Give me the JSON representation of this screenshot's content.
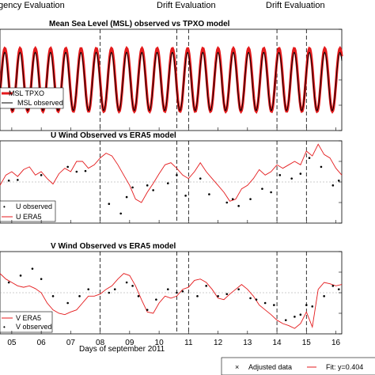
{
  "top_labels": [
    "gency Evaluation",
    "Drift Evaluation",
    "Drift Evaluation"
  ],
  "x_axis_label": "Days of september 2011",
  "x_tick_labels": [
    "05",
    "06",
    "07",
    "08",
    "09",
    "10",
    "11",
    "12",
    "13",
    "14",
    "15",
    "16"
  ],
  "bottom_legend": {
    "adjusted": "Adjusted data",
    "fit": "Fit: y=0.404"
  },
  "colors": {
    "observed": "#000000",
    "model": "#e41a1c",
    "event_line": "#000000",
    "zero_line": "#999999"
  },
  "chart_data": [
    {
      "type": "line",
      "title": "Mean Sea Level (MSL) observed vs TPXO model",
      "x_range": [
        4.6,
        16.2
      ],
      "event_lines": [
        8.0,
        10.6,
        11.0,
        14.0,
        15.0
      ],
      "legend": [
        "MSL TPXO",
        "MSL observed"
      ],
      "series": [
        {
          "name": "MSL TPXO",
          "style": "thick-line",
          "mean": 0.0,
          "amplitude": 1.0,
          "period_days": 0.517,
          "phase": 0.2
        },
        {
          "name": "MSL observed",
          "style": "thin-line",
          "mean": -0.05,
          "amplitude": 0.92,
          "period_days": 0.517,
          "phase": 0.25
        }
      ],
      "ylim": [
        -1.6,
        1.6
      ]
    },
    {
      "type": "line",
      "title": "U Wind Observed vs ERA5 model",
      "x_range": [
        4.6,
        16.2
      ],
      "event_lines": [
        8.0,
        10.6,
        11.0,
        14.0,
        15.0
      ],
      "legend": [
        "U observed",
        "U ERA5"
      ],
      "zero_line": 0,
      "ylim": [
        -6,
        6
      ],
      "series": [
        {
          "name": "U ERA5",
          "style": "line",
          "x": [
            4.6,
            4.8,
            5.0,
            5.2,
            5.4,
            5.6,
            5.8,
            6.0,
            6.2,
            6.4,
            6.6,
            6.8,
            7.0,
            7.2,
            7.4,
            7.6,
            7.8,
            8.0,
            8.2,
            8.4,
            8.6,
            8.8,
            9.0,
            9.2,
            9.4,
            9.6,
            9.8,
            10.0,
            10.2,
            10.4,
            10.6,
            10.8,
            11.0,
            11.2,
            11.4,
            11.6,
            11.8,
            12.0,
            12.2,
            12.4,
            12.6,
            12.8,
            13.0,
            13.2,
            13.4,
            13.6,
            13.8,
            14.0,
            14.2,
            14.4,
            14.6,
            14.8,
            15.0,
            15.2,
            15.4,
            15.6,
            15.8,
            16.0,
            16.2
          ],
          "y": [
            -0.5,
            1.0,
            1.5,
            0.8,
            1.8,
            2.2,
            1.0,
            1.5,
            0.5,
            -0.3,
            1.2,
            2.0,
            1.5,
            3.0,
            3.0,
            2.0,
            2.5,
            3.5,
            4.2,
            3.8,
            2.5,
            1.0,
            -0.5,
            -2.5,
            -3.0,
            -1.5,
            -0.2,
            1.2,
            2.5,
            2.8,
            2.0,
            1.0,
            0.5,
            1.5,
            2.8,
            1.5,
            0.5,
            -0.5,
            -1.5,
            -2.8,
            -2.5,
            -1.0,
            -0.5,
            0.5,
            1.8,
            1.0,
            1.5,
            2.5,
            2.0,
            2.5,
            3.0,
            2.5,
            4.5,
            3.8,
            5.5,
            4.0,
            3.5,
            2.0,
            1.0
          ]
        },
        {
          "name": "U observed",
          "style": "points",
          "x": [
            4.9,
            5.2,
            6.0,
            6.9,
            7.2,
            7.5,
            8.3,
            8.7,
            8.9,
            9.1,
            9.6,
            9.8,
            10.3,
            10.6,
            10.9,
            11.4,
            11.7,
            12.3,
            12.5,
            12.7,
            13.1,
            13.5,
            13.8,
            14.1,
            14.5,
            14.8,
            15.1,
            15.5,
            15.9,
            16.1
          ],
          "y": [
            0.2,
            0.3,
            1.0,
            2.2,
            1.5,
            1.6,
            -3.2,
            -4.6,
            -2.2,
            -0.8,
            -0.5,
            -1.2,
            -0.2,
            1.0,
            -2.0,
            0.5,
            -1.8,
            -3.0,
            -2.5,
            -3.5,
            -2.5,
            -1.0,
            -1.5,
            1.0,
            0.5,
            1.2,
            3.5,
            2.2,
            -0.5,
            0.2
          ]
        }
      ]
    },
    {
      "type": "line",
      "title": "V Wind Observed vs ERA5 model",
      "x_range": [
        4.6,
        16.2
      ],
      "event_lines": [
        8.0,
        10.6,
        11.0,
        14.0,
        15.0
      ],
      "legend": [
        "V ERA5",
        "V observed"
      ],
      "zero_line": 0,
      "ylim": [
        -6,
        6
      ],
      "series": [
        {
          "name": "V ERA5",
          "style": "line",
          "x": [
            4.6,
            4.8,
            5.0,
            5.2,
            5.4,
            5.6,
            5.8,
            6.0,
            6.2,
            6.4,
            6.6,
            6.8,
            7.0,
            7.2,
            7.4,
            7.6,
            7.8,
            8.0,
            8.2,
            8.4,
            8.6,
            8.8,
            9.0,
            9.2,
            9.4,
            9.6,
            9.8,
            10.0,
            10.2,
            10.4,
            10.6,
            10.8,
            11.0,
            11.2,
            11.4,
            11.6,
            11.8,
            12.0,
            12.2,
            12.4,
            12.6,
            12.8,
            13.0,
            13.2,
            13.4,
            13.6,
            13.8,
            14.0,
            14.2,
            14.4,
            14.6,
            14.8,
            15.0,
            15.2,
            15.4,
            15.6,
            15.8,
            16.0,
            16.2
          ],
          "y": [
            2.8,
            2.0,
            1.5,
            1.0,
            0.8,
            1.0,
            0.6,
            0.0,
            -1.5,
            -2.5,
            -3.0,
            -3.2,
            -2.8,
            -2.5,
            -1.5,
            -0.5,
            -0.5,
            -0.2,
            0.5,
            1.0,
            2.0,
            2.8,
            2.5,
            1.0,
            -1.0,
            -2.8,
            -3.0,
            -1.5,
            -0.5,
            -0.8,
            -0.5,
            0.5,
            0.8,
            1.8,
            2.0,
            1.5,
            0.5,
            -0.8,
            -1.0,
            -0.2,
            0.5,
            1.2,
            0.5,
            -0.5,
            -1.8,
            -2.5,
            -3.2,
            -4.0,
            -4.5,
            -4.8,
            -5.2,
            -4.5,
            -2.8,
            -5.0,
            0.5,
            1.5,
            1.3,
            1.0,
            1.2
          ]
        },
        {
          "name": "V observed",
          "style": "points",
          "x": [
            4.9,
            5.3,
            5.7,
            6.0,
            6.4,
            6.9,
            7.3,
            7.6,
            8.3,
            8.5,
            8.9,
            9.1,
            9.3,
            9.6,
            9.9,
            10.3,
            10.6,
            10.8,
            11.3,
            11.6,
            12.0,
            12.3,
            12.7,
            13.1,
            13.3,
            13.6,
            13.9,
            14.3,
            14.6,
            14.8,
            15.0,
            15.2,
            15.6,
            15.9,
            16.1
          ],
          "y": [
            1.5,
            2.5,
            3.5,
            2.0,
            -0.5,
            -1.5,
            -0.5,
            0.5,
            0.0,
            0.5,
            1.5,
            1.0,
            -0.5,
            -2.5,
            -1.0,
            0.5,
            0.0,
            0.2,
            -0.5,
            1.0,
            -0.5,
            -0.2,
            0.5,
            -0.8,
            -1.0,
            -1.5,
            -1.8,
            -4.0,
            -3.5,
            -3.2,
            -1.8,
            -2.0,
            -0.5,
            1.0,
            0.5
          ]
        }
      ]
    }
  ]
}
